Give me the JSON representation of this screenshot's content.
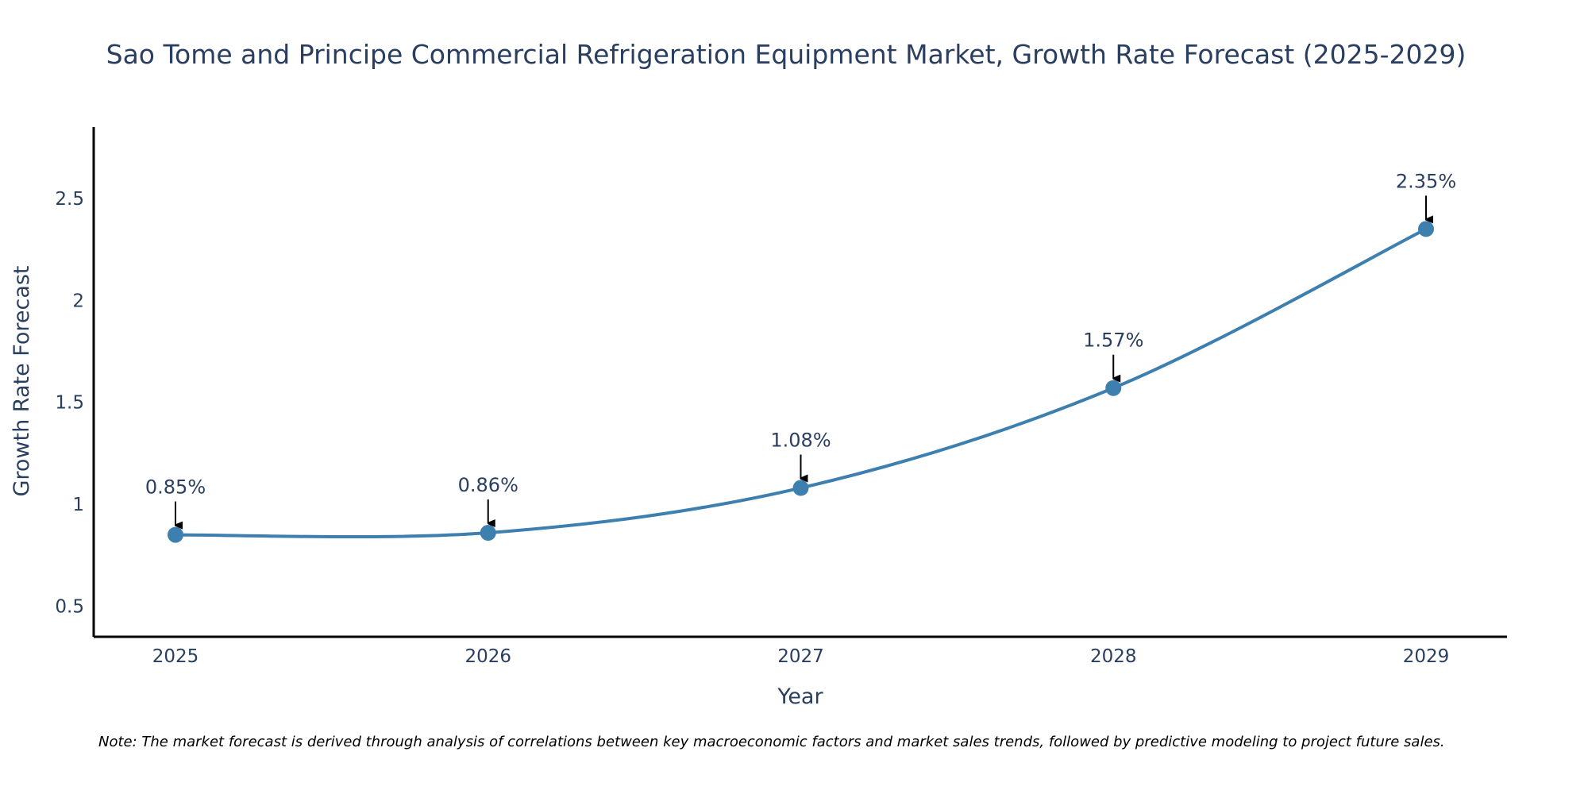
{
  "chart_data": {
    "type": "line",
    "title": "Sao Tome and Principe Commercial Refrigeration Equipment Market, Growth Rate Forecast (2025-2029)",
    "xlabel": "Year",
    "ylabel": "Growth Rate Forecast",
    "categories": [
      "2025",
      "2026",
      "2027",
      "2028",
      "2029"
    ],
    "series": [
      {
        "name": "Growth Rate Forecast",
        "values": [
          0.85,
          0.86,
          1.08,
          1.57,
          2.35
        ],
        "labels": [
          "0.85%",
          "0.86%",
          "1.08%",
          "1.57%",
          "2.35%"
        ]
      }
    ],
    "yticks": [
      "0.5",
      "1",
      "1.5",
      "2",
      "2.5"
    ],
    "ylim": [
      0.35,
      2.85
    ],
    "grid": false,
    "line_color": "#3d7fae",
    "marker_color": "#3d7fae",
    "arrow_color": "#000000",
    "note": "Note: The market forecast is derived through analysis of correlations between key macroeconomic factors and market sales trends, followed by predictive modeling to project future sales."
  }
}
